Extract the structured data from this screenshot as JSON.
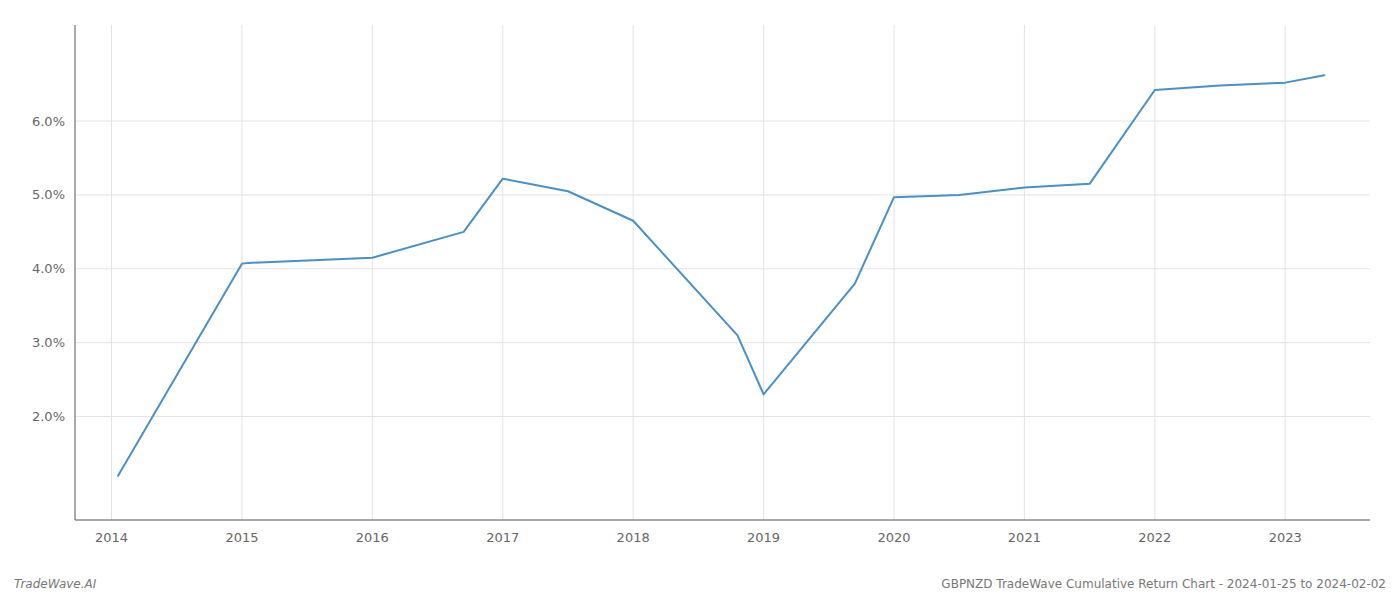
{
  "chart_data": {
    "type": "line",
    "x": [
      2014.05,
      2015.0,
      2015.05,
      2016.0,
      2016.7,
      2017.0,
      2017.5,
      2018.0,
      2018.8,
      2019.0,
      2019.7,
      2020.0,
      2020.5,
      2021.0,
      2021.5,
      2022.0,
      2022.5,
      2023.0,
      2023.3
    ],
    "values": [
      1.2,
      4.07,
      4.08,
      4.15,
      4.5,
      5.22,
      5.05,
      4.65,
      3.1,
      2.3,
      3.8,
      4.97,
      5.0,
      5.1,
      5.15,
      6.42,
      6.48,
      6.52,
      6.62
    ],
    "color": "#4a90c4",
    "xlim": [
      2013.72,
      2023.65
    ],
    "ylim": [
      0.6,
      7.3
    ],
    "xticks": [
      2014,
      2015,
      2016,
      2017,
      2018,
      2019,
      2020,
      2021,
      2022,
      2023
    ],
    "yticks": [
      {
        "value": 2.0,
        "label": "2.0%"
      },
      {
        "value": 3.0,
        "label": "3.0%"
      },
      {
        "value": 4.0,
        "label": "4.0%"
      },
      {
        "value": 5.0,
        "label": "5.0%"
      },
      {
        "value": 6.0,
        "label": "6.0%"
      }
    ],
    "grid": true,
    "annotations": [
      "TradeWave.AI",
      "GBPNZD TradeWave Cumulative Return Chart - 2024-01-25 to 2024-02-02"
    ]
  }
}
